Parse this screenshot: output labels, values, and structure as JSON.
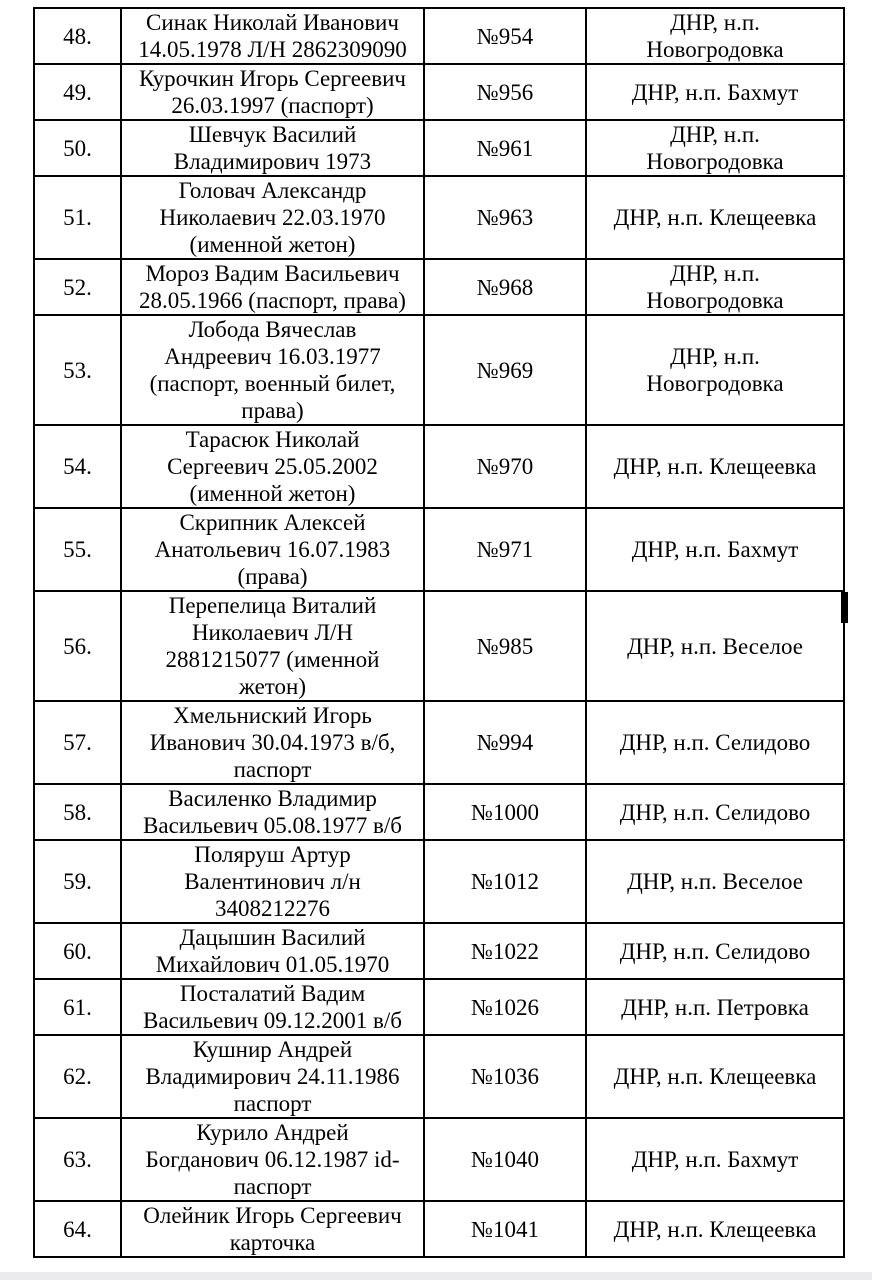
{
  "page": {
    "background_color": "#ffffff",
    "text_color": "#000000",
    "table_border_color": "#000000",
    "bottom_strip_color": "#eaeaef"
  },
  "table": {
    "rows": [
      {
        "index": "48.",
        "name": "Синак Николай Иванович\n14.05.1978 Л/Н 2862309090",
        "number": "№954",
        "location": "ДНР, н.п.\nНовогродовка"
      },
      {
        "index": "49.",
        "name": "Курочкин Игорь Сергеевич\n26.03.1997 (паспорт)",
        "number": "№956",
        "location": "ДНР, н.п. Бахмут"
      },
      {
        "index": "50.",
        "name": "Шевчук Василий\nВладимирович 1973",
        "number": "№961",
        "location": "ДНР, н.п.\nНовогродовка"
      },
      {
        "index": "51.",
        "name": "Головач Александр\nНиколаевич 22.03.1970\n(именной жетон)",
        "number": "№963",
        "location": "ДНР, н.п. Клещеевка"
      },
      {
        "index": "52.",
        "name": "Мороз Вадим Васильевич\n28.05.1966 (паспорт, права)",
        "number": "№968",
        "location": "ДНР, н.п.\nНовогродовка"
      },
      {
        "index": "53.",
        "name": "Лобода Вячеслав\nАндреевич 16.03.1977\n(паспорт, военный билет,\nправа)",
        "number": "№969",
        "location": "ДНР, н.п.\nНовогродовка"
      },
      {
        "index": "54.",
        "name": "Тарасюк Николай\nСергеевич 25.05.2002\n(именной жетон)",
        "number": "№970",
        "location": "ДНР, н.п. Клещеевка"
      },
      {
        "index": "55.",
        "name": "Скрипник Алексей\nАнатольевич 16.07.1983\n(права)",
        "number": "№971",
        "location": "ДНР, н.п. Бахмут"
      },
      {
        "index": "56.",
        "name": "Перепелица Виталий\nНиколаевич Л/Н\n2881215077 (именной\nжетон)",
        "number": "№985",
        "location": "ДНР, н.п. Веселое"
      },
      {
        "index": "57.",
        "name": "Хмельниский Игорь\nИванович 30.04.1973 в/б,\nпаспорт",
        "number": "№994",
        "location": "ДНР, н.п. Селидово"
      },
      {
        "index": "58.",
        "name": "Василенко Владимир\nВасильевич 05.08.1977 в/б",
        "number": "№1000",
        "location": "ДНР, н.п. Селидово"
      },
      {
        "index": "59.",
        "name": "Поляруш Артур\nВалентинович л/н\n3408212276",
        "number": "№1012",
        "location": "ДНР, н.п. Веселое"
      },
      {
        "index": "60.",
        "name": "Дацышин Василий\nМихайлович 01.05.1970",
        "number": "№1022",
        "location": "ДНР, н.п. Селидово"
      },
      {
        "index": "61.",
        "name": "Посталатий Вадим\nВасильевич 09.12.2001 в/б",
        "number": "№1026",
        "location": "ДНР, н.п. Петровка"
      },
      {
        "index": "62.",
        "name": "Кушнир Андрей\nВладимирович 24.11.1986\nпаспорт",
        "number": "№1036",
        "location": "ДНР, н.п. Клещеевка"
      },
      {
        "index": "63.",
        "name": "Курило Андрей\nБогданович 06.12.1987 id-\nпаспорт",
        "number": "№1040",
        "location": "ДНР, н.п. Бахмут"
      },
      {
        "index": "64.",
        "name": "Олейник Игорь Сергеевич\nкарточка",
        "number": "№1041",
        "location": "ДНР, н.п. Клещеевка"
      }
    ]
  }
}
